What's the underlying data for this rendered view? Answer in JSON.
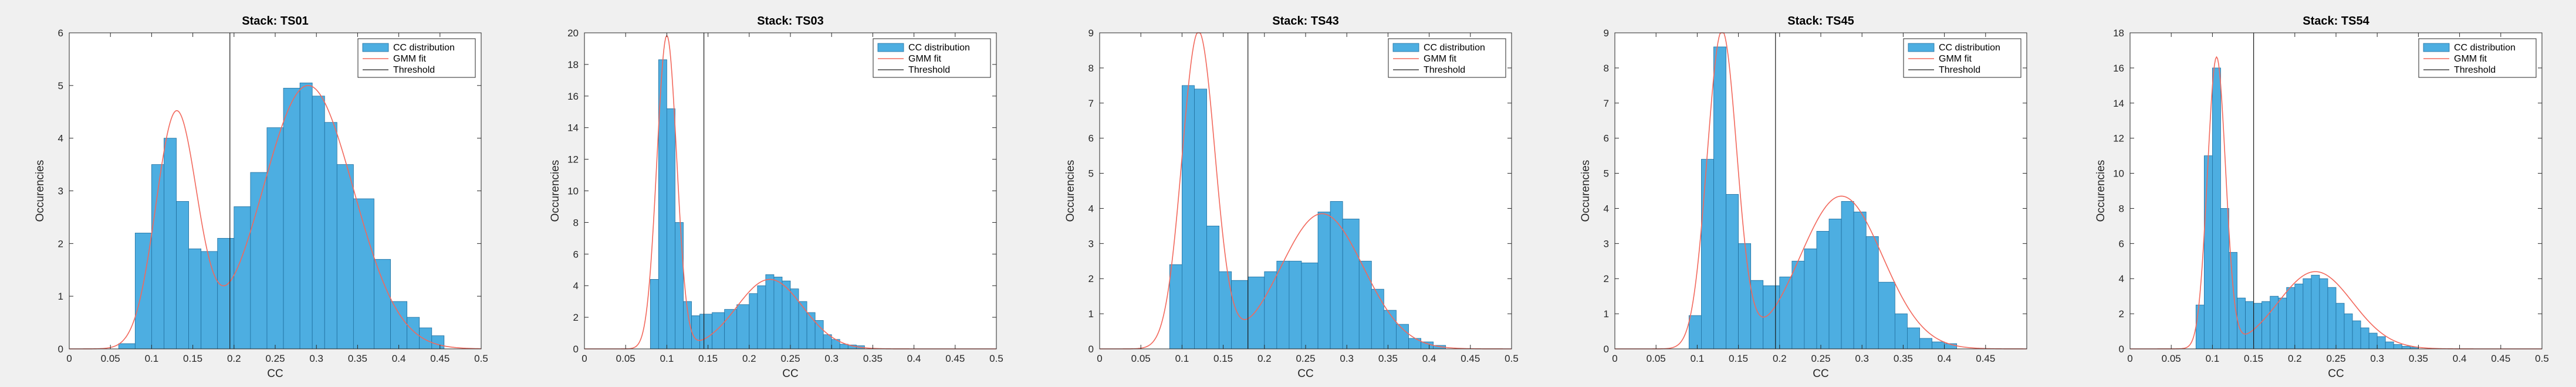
{
  "colors": {
    "bars": "#4DAEE1",
    "bar_edge": "#1F6E9E",
    "gmm": "#F2685C",
    "threshold": "#1a1a1a"
  },
  "chart_data": [
    {
      "type": "bar",
      "title": "Stack: TS01",
      "xlabel": "CC",
      "ylabel": "Occurencies",
      "xlim": [
        0,
        0.5
      ],
      "ylim": [
        0,
        6
      ],
      "xticks": [
        "0",
        "0.05",
        "0.1",
        "0.15",
        "0.2",
        "0.25",
        "0.3",
        "0.35",
        "0.4",
        "0.45",
        "0.5"
      ],
      "yticks": [
        "0",
        "1",
        "2",
        "3",
        "4",
        "5",
        "6"
      ],
      "threshold": 0.195,
      "legend": [
        "CC distribution",
        "GMM fit",
        "Threshold"
      ],
      "legend_position": "top-right",
      "bin_edges": [
        0.06,
        0.08,
        0.1,
        0.115,
        0.13,
        0.145,
        0.16,
        0.18,
        0.2,
        0.22,
        0.24,
        0.26,
        0.28,
        0.295,
        0.31,
        0.325,
        0.345,
        0.37,
        0.39,
        0.41,
        0.425,
        0.44,
        0.455
      ],
      "counts": [
        0.1,
        2.2,
        3.5,
        4.0,
        2.8,
        1.9,
        1.85,
        2.1,
        2.7,
        3.35,
        4.2,
        4.95,
        5.05,
        4.8,
        4.3,
        3.5,
        2.85,
        1.7,
        0.9,
        0.6,
        0.4,
        0.25
      ],
      "gmm": [
        {
          "w": 0.27,
          "mu": 0.13,
          "sigma": 0.025
        },
        {
          "w": 0.73,
          "mu": 0.29,
          "sigma": 0.055
        }
      ],
      "gmm_peak": [
        4.45,
        5.0
      ]
    },
    {
      "type": "bar",
      "title": "Stack: TS03",
      "xlabel": "CC",
      "ylabel": "Occurencies",
      "xlim": [
        0,
        0.5
      ],
      "ylim": [
        0,
        20
      ],
      "xticks": [
        "0",
        "0.05",
        "0.1",
        "0.15",
        "0.2",
        "0.25",
        "0.3",
        "0.35",
        "0.4",
        "0.45",
        "0.5"
      ],
      "yticks": [
        "0",
        "2",
        "4",
        "6",
        "8",
        "10",
        "12",
        "14",
        "16",
        "18",
        "20"
      ],
      "threshold": 0.145,
      "legend": [
        "CC distribution",
        "GMM fit",
        "Threshold"
      ],
      "legend_position": "top-right",
      "bin_edges": [
        0.08,
        0.09,
        0.1,
        0.11,
        0.12,
        0.13,
        0.14,
        0.155,
        0.17,
        0.185,
        0.2,
        0.21,
        0.22,
        0.23,
        0.24,
        0.25,
        0.26,
        0.27,
        0.28,
        0.29,
        0.3,
        0.31,
        0.32,
        0.33,
        0.34
      ],
      "counts": [
        4.4,
        18.3,
        15.2,
        8.0,
        3.0,
        2.1,
        2.2,
        2.3,
        2.5,
        2.8,
        3.5,
        4.0,
        4.7,
        4.55,
        4.3,
        3.8,
        3.0,
        2.3,
        1.8,
        0.9,
        0.6,
        0.3,
        0.25,
        0.2
      ],
      "gmm": [
        {
          "w": 0.5,
          "mu": 0.1,
          "sigma": 0.012
        },
        {
          "w": 0.5,
          "mu": 0.225,
          "sigma": 0.04
        }
      ],
      "gmm_peak": [
        19.8,
        4.4
      ]
    },
    {
      "type": "bar",
      "title": "Stack: TS43",
      "xlabel": "CC",
      "ylabel": "Occurencies",
      "xlim": [
        0,
        0.5
      ],
      "ylim": [
        0,
        9
      ],
      "xticks": [
        "0",
        "0.05",
        "0.1",
        "0.15",
        "0.2",
        "0.25",
        "0.3",
        "0.35",
        "0.4",
        "0.45",
        "0.5"
      ],
      "yticks": [
        "0",
        "1",
        "2",
        "3",
        "4",
        "5",
        "6",
        "7",
        "8",
        "9"
      ],
      "threshold": 0.18,
      "legend": [
        "CC distribution",
        "GMM fit",
        "Threshold"
      ],
      "legend_position": "top-right",
      "bin_edges": [
        0.085,
        0.1,
        0.115,
        0.13,
        0.145,
        0.16,
        0.18,
        0.2,
        0.215,
        0.23,
        0.245,
        0.265,
        0.28,
        0.295,
        0.315,
        0.33,
        0.345,
        0.36,
        0.375,
        0.39,
        0.405,
        0.42
      ],
      "counts": [
        2.4,
        7.5,
        7.4,
        3.5,
        2.2,
        1.95,
        2.05,
        2.2,
        2.5,
        2.5,
        2.45,
        3.9,
        4.2,
        3.7,
        2.5,
        1.7,
        1.1,
        0.7,
        0.3,
        0.2,
        0.1
      ],
      "gmm": [
        {
          "w": 0.45,
          "mu": 0.12,
          "sigma": 0.02
        },
        {
          "w": 0.55,
          "mu": 0.27,
          "sigma": 0.05
        }
      ],
      "gmm_peak": [
        9.0,
        3.85
      ]
    },
    {
      "type": "bar",
      "title": "Stack: TS45",
      "xlabel": "CC",
      "ylabel": "Occurencies",
      "xlim": [
        0,
        0.5
      ],
      "ylim": [
        0,
        9
      ],
      "xticks": [
        "0",
        "0.05",
        "0.1",
        "0.15",
        "0.2",
        "0.25",
        "0.3",
        "0.35",
        "0.4",
        "0.45"
      ],
      "yticks": [
        "0",
        "1",
        "2",
        "3",
        "4",
        "5",
        "6",
        "7",
        "8",
        "9"
      ],
      "threshold": 0.195,
      "legend": [
        "CC distribution",
        "GMM fit",
        "Threshold"
      ],
      "legend_position": "top-right",
      "bin_edges": [
        0.09,
        0.105,
        0.12,
        0.135,
        0.15,
        0.165,
        0.18,
        0.2,
        0.215,
        0.23,
        0.245,
        0.26,
        0.275,
        0.29,
        0.305,
        0.32,
        0.34,
        0.355,
        0.37,
        0.385,
        0.4,
        0.415
      ],
      "counts": [
        0.95,
        5.4,
        8.6,
        4.4,
        3.0,
        1.95,
        1.8,
        2.05,
        2.5,
        2.85,
        3.35,
        3.7,
        4.2,
        3.9,
        3.2,
        1.9,
        1.0,
        0.6,
        0.3,
        0.2,
        0.15
      ],
      "gmm": [
        {
          "w": 0.42,
          "mu": 0.13,
          "sigma": 0.018
        },
        {
          "w": 0.58,
          "mu": 0.275,
          "sigma": 0.05
        }
      ],
      "gmm_peak": [
        9.0,
        4.35
      ]
    },
    {
      "type": "bar",
      "title": "Stack: TS54",
      "xlabel": "CC",
      "ylabel": "Occurencies",
      "xlim": [
        0,
        0.5
      ],
      "ylim": [
        0,
        18
      ],
      "xticks": [
        "0",
        "0.05",
        "0.1",
        "0.15",
        "0.2",
        "0.25",
        "0.3",
        "0.35",
        "0.4",
        "0.45",
        "0.5"
      ],
      "yticks": [
        "0",
        "2",
        "4",
        "6",
        "8",
        "10",
        "12",
        "14",
        "16",
        "18"
      ],
      "threshold": 0.15,
      "legend": [
        "CC distribution",
        "GMM fit",
        "Threshold"
      ],
      "legend_position": "top-right",
      "bin_edges": [
        0.08,
        0.09,
        0.1,
        0.11,
        0.12,
        0.13,
        0.14,
        0.15,
        0.16,
        0.17,
        0.18,
        0.19,
        0.2,
        0.21,
        0.22,
        0.23,
        0.24,
        0.25,
        0.26,
        0.27,
        0.28,
        0.29,
        0.3,
        0.31,
        0.32,
        0.33,
        0.34,
        0.35
      ],
      "counts": [
        2.5,
        11.0,
        16.0,
        8.0,
        5.5,
        2.9,
        2.7,
        2.6,
        2.7,
        3.0,
        2.9,
        3.5,
        3.7,
        4.0,
        4.2,
        4.0,
        3.5,
        2.6,
        2.0,
        1.6,
        1.2,
        0.9,
        0.7,
        0.4,
        0.25,
        0.15,
        0.1
      ],
      "gmm": [
        {
          "w": 0.45,
          "mu": 0.105,
          "sigma": 0.011
        },
        {
          "w": 0.55,
          "mu": 0.225,
          "sigma": 0.045
        }
      ],
      "gmm_peak": [
        16.5,
        4.4
      ]
    }
  ]
}
